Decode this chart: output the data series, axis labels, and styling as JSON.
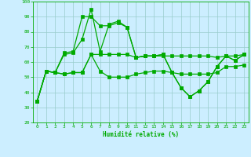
{
  "x": [
    0,
    1,
    2,
    3,
    4,
    5,
    6,
    7,
    8,
    9,
    10,
    11,
    12,
    13,
    14,
    15,
    16,
    17,
    18,
    19,
    20,
    21,
    22,
    23
  ],
  "line1": [
    34,
    54,
    53,
    65,
    66,
    75,
    95,
    67,
    85,
    87,
    83,
    63,
    64,
    64,
    65,
    53,
    43,
    37,
    41,
    47,
    57,
    64,
    61,
    65
  ],
  "line2": [
    34,
    54,
    53,
    66,
    67,
    90,
    90,
    84,
    84,
    86,
    83,
    63,
    64,
    64,
    65,
    53,
    43,
    37,
    41,
    47,
    57,
    64,
    61,
    65
  ],
  "line3": [
    34,
    54,
    53,
    52,
    53,
    53,
    65,
    54,
    50,
    50,
    50,
    52,
    53,
    54,
    54,
    53,
    52,
    52,
    52,
    52,
    53,
    57,
    57,
    58
  ],
  "line4": [
    34,
    54,
    53,
    52,
    53,
    53,
    65,
    65,
    65,
    65,
    65,
    63,
    64,
    64,
    64,
    64,
    64,
    64,
    64,
    64,
    63,
    64,
    64,
    65
  ],
  "bg_color": "#cceeff",
  "grid_color": "#99cccc",
  "line_color": "#00aa00",
  "xlabel": "Humidité relative (%)",
  "ylim": [
    20,
    100
  ],
  "xlim": [
    -0.5,
    23.5
  ],
  "yticks": [
    20,
    30,
    40,
    50,
    60,
    70,
    80,
    90,
    100
  ],
  "xticks": [
    0,
    1,
    2,
    3,
    4,
    5,
    6,
    7,
    8,
    9,
    10,
    11,
    12,
    13,
    14,
    15,
    16,
    17,
    18,
    19,
    20,
    21,
    22,
    23
  ]
}
